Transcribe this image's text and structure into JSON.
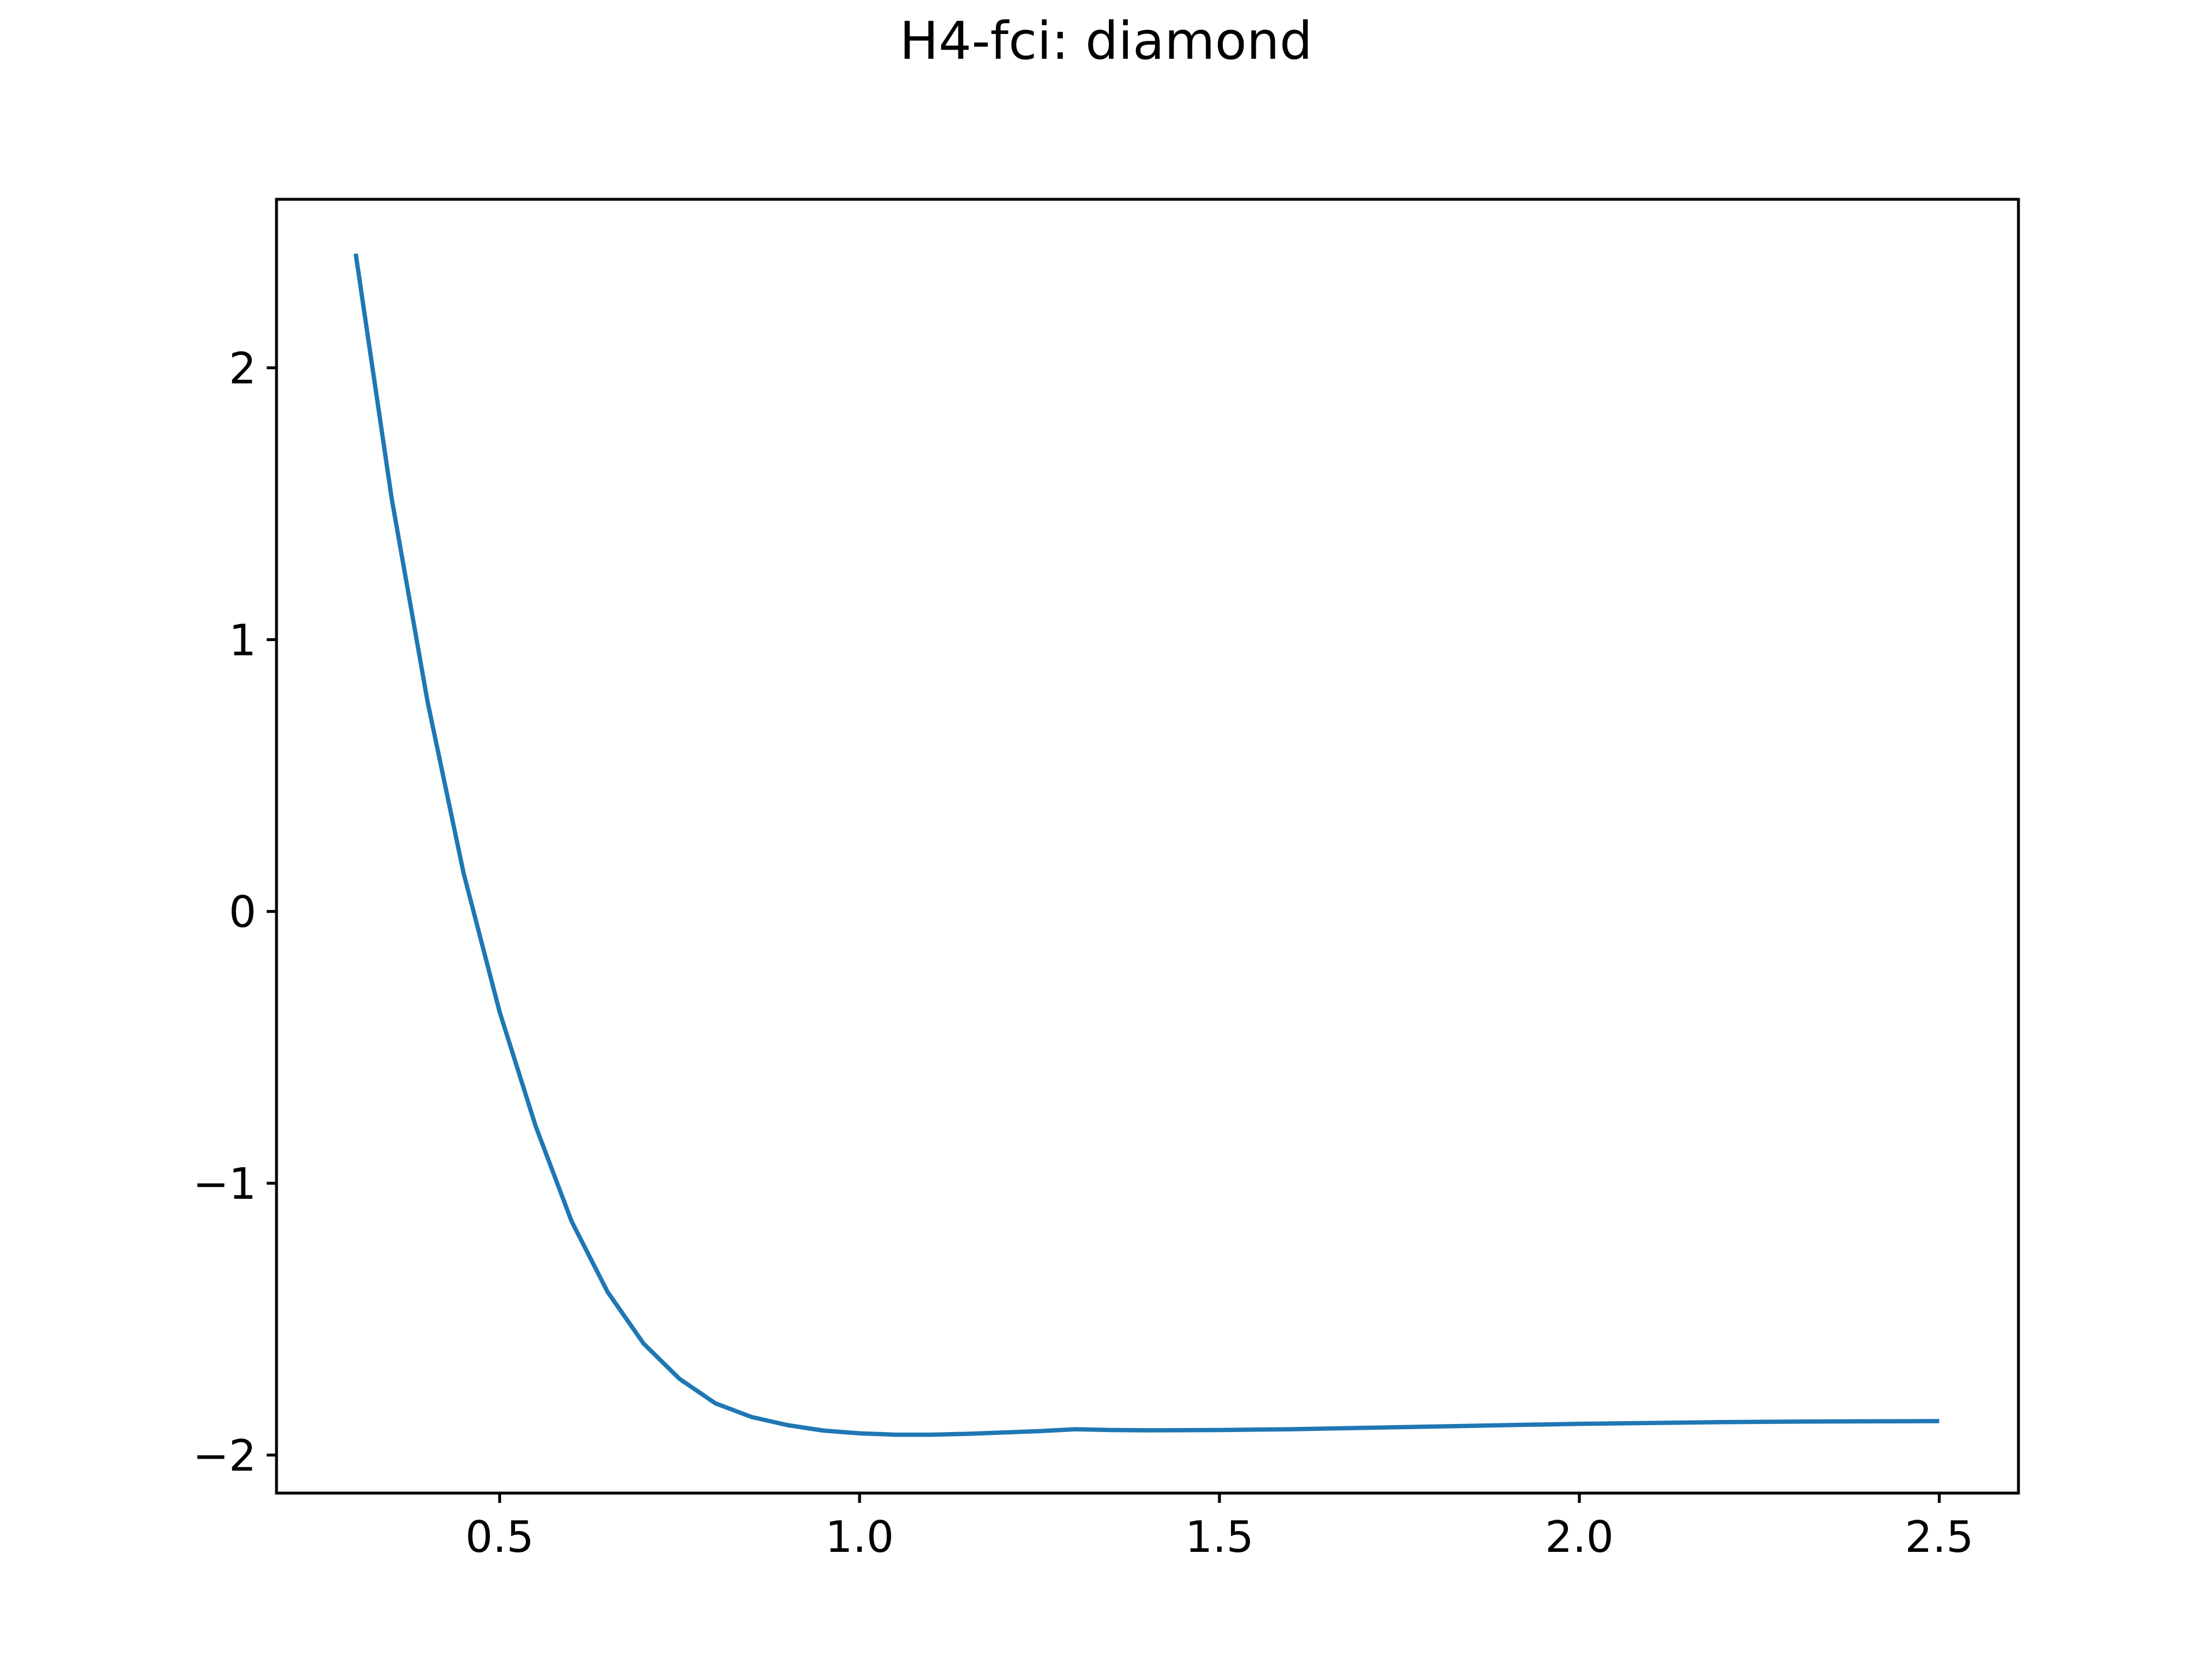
{
  "chart_data": {
    "type": "line",
    "title": "H4-fci: diamond",
    "xlabel": "",
    "ylabel": "",
    "xlim": [
      0.19,
      2.61
    ],
    "ylim": [
      -2.14,
      2.62
    ],
    "x_ticks": [
      0.5,
      1.0,
      1.5,
      2.0,
      2.5
    ],
    "x_tick_labels": [
      "0.5",
      "1.0",
      "1.5",
      "2.0",
      "2.5"
    ],
    "y_ticks": [
      -2,
      -1,
      0,
      1,
      2
    ],
    "y_tick_labels": [
      "−2",
      "−1",
      "0",
      "1",
      "2"
    ],
    "grid": false,
    "legend": "none",
    "colors": {
      "series": "#1f77b4",
      "axes": "#000000",
      "background": "#ffffff"
    },
    "series": [
      {
        "color": "#1f77b4",
        "x": [
          0.3,
          0.35,
          0.4,
          0.45,
          0.5,
          0.55,
          0.6,
          0.65,
          0.7,
          0.75,
          0.8,
          0.85,
          0.9,
          0.95,
          1.0,
          1.05,
          1.1,
          1.15,
          1.2,
          1.25,
          1.3,
          1.35,
          1.4,
          1.5,
          1.6,
          1.7,
          1.8,
          1.9,
          2.0,
          2.1,
          2.2,
          2.3,
          2.4,
          2.5
        ],
        "y": [
          2.42,
          1.52,
          0.77,
          0.14,
          -0.37,
          -0.79,
          -1.14,
          -1.4,
          -1.59,
          -1.72,
          -1.81,
          -1.86,
          -1.89,
          -1.91,
          -1.92,
          -1.925,
          -1.925,
          -1.922,
          -1.917,
          -1.912,
          -1.905,
          -1.908,
          -1.909,
          -1.908,
          -1.905,
          -1.9,
          -1.895,
          -1.89,
          -1.885,
          -1.882,
          -1.879,
          -1.877,
          -1.876,
          -1.875
        ]
      }
    ]
  }
}
